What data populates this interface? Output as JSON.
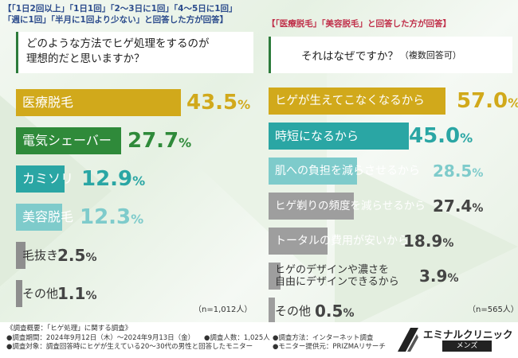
{
  "colors": {
    "gold": "#d1a91b",
    "green": "#2f8a3a",
    "teal": "#2aa6a4",
    "tealLight": "#7ecbcb",
    "greyLeft": "#8e8e8e",
    "greyRight": "#9e9e9e",
    "text": "#333333"
  },
  "left_panel": {
    "condition_lines": [
      "【「1日2回以上」「1日1回」「2〜3日に1回」「4〜5日に1回」",
      "「週に1回」「半月に1回より少ない」と回答した方が回答】"
    ],
    "question_lines": [
      "どのような方法でヒゲ処理をするのが",
      "理想的だと思いますか？"
    ],
    "n_label": "（n=1,012人）"
  },
  "right_panel": {
    "condition": "【「医療脱毛」「美容脱毛」と回答した方が回答】",
    "question": "それはなぜですか？",
    "question_note": "（複数回答可）",
    "n_label": "（n=565人）"
  },
  "chart_data": [
    {
      "type": "bar",
      "title": "どのような方法でヒゲ処理をするのが理想的だと思いますか？",
      "categories": [
        "医療脱毛",
        "電気シェーバー",
        "カミソリ",
        "美容脱毛",
        "毛抜き",
        "その他"
      ],
      "values": [
        43.5,
        27.7,
        12.9,
        12.3,
        2.5,
        1.1
      ],
      "unit": "%",
      "xlim": [
        0,
        100
      ]
    },
    {
      "type": "bar",
      "title": "それはなぜですか？（複数回答可）",
      "categories": [
        "ヒゲが生えてこなくなるから",
        "時短になるから",
        "肌への負担を減らさせるから",
        "ヒゲ剃りの頻度を減らせるから",
        "トータルの費用が安いから",
        "ヒゲのデザインや濃さを|自由にデザインできるから",
        "その他"
      ],
      "values": [
        57.0,
        45.0,
        28.5,
        27.4,
        18.9,
        3.9,
        0.5
      ],
      "unit": "%",
      "xlim": [
        0,
        100
      ]
    }
  ],
  "footer": {
    "title": "《調査概要：「ヒゲ処理」に関する調査》",
    "items": [
      "●調査期間：2024年9月12日（木）〜2024年9月13日（金）",
      "●調査人数：1,025人",
      "●調査方法：インターネット調査",
      "●調査対象：調査回答時にヒゲが生えている20〜30代の男性と回答したモニター",
      "●モニター提供元：PRIZMAリサーチ"
    ],
    "brand": "エミナルクリニック",
    "brand_sub": "メンズ"
  }
}
